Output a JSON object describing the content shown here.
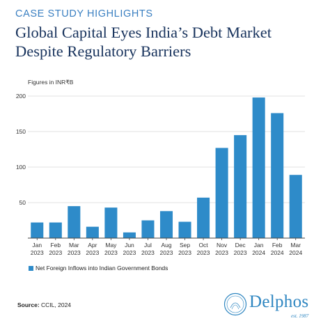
{
  "header": {
    "kicker": "CASE STUDY HIGHLIGHTS",
    "title": "Global Capital Eyes India’s Debt Market Despite Regulatory Barriers"
  },
  "chart_data": {
    "type": "bar",
    "units_note": "Figures in INR₹B",
    "categories": [
      [
        "Jan",
        "2023"
      ],
      [
        "Feb",
        "2023"
      ],
      [
        "Mar",
        "2023"
      ],
      [
        "Apr",
        "2023"
      ],
      [
        "May",
        "2023"
      ],
      [
        "Jun",
        "2023"
      ],
      [
        "Jul",
        "2023"
      ],
      [
        "Aug",
        "2023"
      ],
      [
        "Sep",
        "2023"
      ],
      [
        "Oct",
        "2023"
      ],
      [
        "Nov",
        "2023"
      ],
      [
        "Dec",
        "2023"
      ],
      [
        "Jan",
        "2024"
      ],
      [
        "Feb",
        "2024"
      ],
      [
        "Mar",
        "2024"
      ]
    ],
    "series": [
      {
        "name": "Net Foreign Inflows into Indian Government Bonds",
        "values": [
          22,
          22,
          45,
          16,
          43,
          8,
          25,
          38,
          23,
          57,
          127,
          145,
          198,
          176,
          89
        ]
      }
    ],
    "ylim": [
      0,
      200
    ],
    "yticks": [
      50,
      100,
      150,
      200
    ],
    "grid": true,
    "legend": "bottom-left",
    "bar_color": "#2e8bc9"
  },
  "footer": {
    "source_label": "Source:",
    "source_text": "CCIL, 2024",
    "logo_name": "Delphos",
    "logo_est": "est. 1987"
  }
}
